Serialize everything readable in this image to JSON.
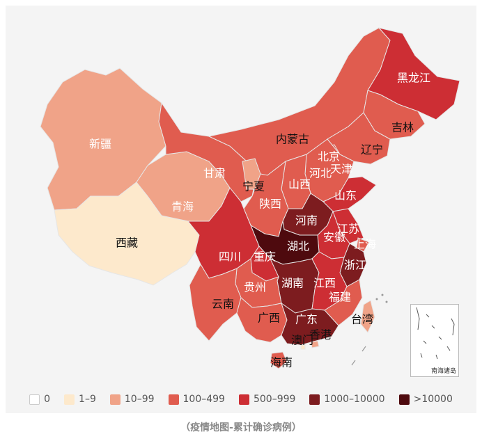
{
  "map": {
    "inset_label": "南海诸岛",
    "provinces": [
      {
        "id": "xinjiang",
        "name": "新疆",
        "bucket": "10-99",
        "color": "#f0a388"
      },
      {
        "id": "xizang",
        "name": "西藏",
        "bucket": "1-9",
        "color": "#fde9cc"
      },
      {
        "id": "qinghai",
        "name": "青海",
        "bucket": "10-99",
        "color": "#f0a388"
      },
      {
        "id": "gansu",
        "name": "甘肃",
        "bucket": "100-499",
        "color": "#e05c4f"
      },
      {
        "id": "neimenggu",
        "name": "内蒙古",
        "bucket": "100-499",
        "color": "#e05c4f"
      },
      {
        "id": "heilongjiang",
        "name": "黑龙江",
        "bucket": "500-999",
        "color": "#cd2e34"
      },
      {
        "id": "jilin",
        "name": "吉林",
        "bucket": "100-499",
        "color": "#e05c4f"
      },
      {
        "id": "liaoning",
        "name": "辽宁",
        "bucket": "100-499",
        "color": "#e05c4f"
      },
      {
        "id": "beijing",
        "name": "北京",
        "bucket": "100-499",
        "color": "#e05c4f"
      },
      {
        "id": "tianjin",
        "name": "天津",
        "bucket": "100-499",
        "color": "#e05c4f"
      },
      {
        "id": "hebei",
        "name": "河北",
        "bucket": "100-499",
        "color": "#e05c4f"
      },
      {
        "id": "ningxia",
        "name": "宁夏",
        "bucket": "10-99",
        "color": "#f0a388"
      },
      {
        "id": "shanxi",
        "name": "山西",
        "bucket": "100-499",
        "color": "#e05c4f"
      },
      {
        "id": "shaanxi",
        "name": "陕西",
        "bucket": "100-499",
        "color": "#e05c4f"
      },
      {
        "id": "shandong",
        "name": "山东",
        "bucket": "500-999",
        "color": "#cd2e34"
      },
      {
        "id": "henan",
        "name": "河南",
        "bucket": "1000-10000",
        "color": "#7d1c1f"
      },
      {
        "id": "jiangsu",
        "name": "江苏",
        "bucket": "500-999",
        "color": "#cd2e34"
      },
      {
        "id": "anhui",
        "name": "安徽",
        "bucket": "500-999",
        "color": "#cd2e34"
      },
      {
        "id": "shanghai",
        "name": "上海",
        "bucket": "100-499",
        "color": "#e05c4f"
      },
      {
        "id": "hubei",
        "name": "湖北",
        "bucket": ">10000",
        "color": "#4e0a0e"
      },
      {
        "id": "sichuan",
        "name": "四川",
        "bucket": "500-999",
        "color": "#cd2e34"
      },
      {
        "id": "chongqing",
        "name": "重庆",
        "bucket": "500-999",
        "color": "#cd2e34"
      },
      {
        "id": "zhejiang",
        "name": "浙江",
        "bucket": "1000-10000",
        "color": "#7d1c1f"
      },
      {
        "id": "hunan",
        "name": "湖南",
        "bucket": "1000-10000",
        "color": "#7d1c1f"
      },
      {
        "id": "jiangxi",
        "name": "江西",
        "bucket": "500-999",
        "color": "#cd2e34"
      },
      {
        "id": "guizhou",
        "name": "贵州",
        "bucket": "100-499",
        "color": "#e05c4f"
      },
      {
        "id": "yunnan",
        "name": "云南",
        "bucket": "100-499",
        "color": "#e05c4f"
      },
      {
        "id": "fujian",
        "name": "福建",
        "bucket": "100-499",
        "color": "#e05c4f"
      },
      {
        "id": "guangxi",
        "name": "广西",
        "bucket": "100-499",
        "color": "#e05c4f"
      },
      {
        "id": "guangdong",
        "name": "广东",
        "bucket": "1000-10000",
        "color": "#7d1c1f"
      },
      {
        "id": "taiwan",
        "name": "台湾",
        "bucket": "10-99",
        "color": "#f0a388"
      },
      {
        "id": "xianggang",
        "name": "香港",
        "bucket": "10-99",
        "color": "#f0a388"
      },
      {
        "id": "aomen",
        "name": "澳门",
        "bucket": "1-9",
        "color": "#fde9cc"
      },
      {
        "id": "hainan",
        "name": "海南",
        "bucket": "100-499",
        "color": "#e05c4f"
      }
    ]
  },
  "legend": [
    {
      "label": "0",
      "color": "#ffffff"
    },
    {
      "label": "1–9",
      "color": "#fde9cc"
    },
    {
      "label": "10–99",
      "color": "#f0a388"
    },
    {
      "label": "100–499",
      "color": "#e05c4f"
    },
    {
      "label": "500–999",
      "color": "#cd2e34"
    },
    {
      "label": "1000–10000",
      "color": "#7d1c1f"
    },
    {
      "label": ">10000",
      "color": "#4e0a0e"
    }
  ],
  "caption": "（疫情地图-累计确诊病例）"
}
